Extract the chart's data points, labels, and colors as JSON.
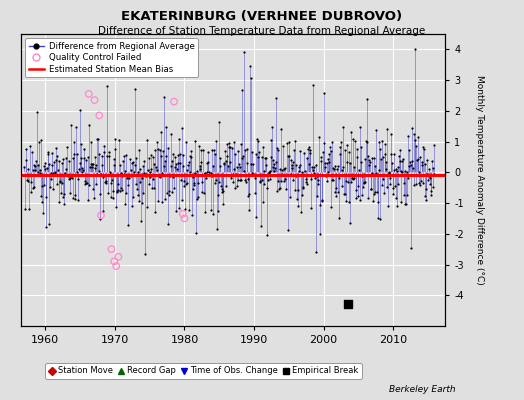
{
  "title": "EKATERINBURG (VERHNEE DUBROVO)",
  "subtitle": "Difference of Station Temperature Data from Regional Average",
  "ylabel": "Monthly Temperature Anomaly Difference (°C)",
  "xlabel_years": [
    1960,
    1970,
    1980,
    1990,
    2000,
    2010
  ],
  "xlim": [
    1956.5,
    2017.5
  ],
  "ylim": [
    -5,
    4.5
  ],
  "yticks": [
    -4,
    -3,
    -2,
    -1,
    0,
    1,
    2,
    3,
    4
  ],
  "bias_value": -0.1,
  "empirical_break_years": [
    2003.5
  ],
  "empirical_break_values": [
    -4.3
  ],
  "qc_points": [
    [
      1966.25,
      2.55
    ],
    [
      1967.08,
      2.35
    ],
    [
      1967.75,
      1.85
    ],
    [
      1968.0,
      -1.4
    ],
    [
      1969.5,
      -2.5
    ],
    [
      1969.9,
      -2.9
    ],
    [
      1970.2,
      -3.05
    ],
    [
      1970.5,
      -2.75
    ],
    [
      1978.5,
      2.3
    ],
    [
      1979.75,
      -1.35
    ],
    [
      1980.0,
      -1.5
    ]
  ],
  "line_color": "#4444CC",
  "marker_color": "#000000",
  "qc_edge_color": "#FF88CC",
  "bias_color": "#FF0000",
  "background_color": "#E0E0E0",
  "grid_color": "#FFFFFF",
  "seed": 17
}
